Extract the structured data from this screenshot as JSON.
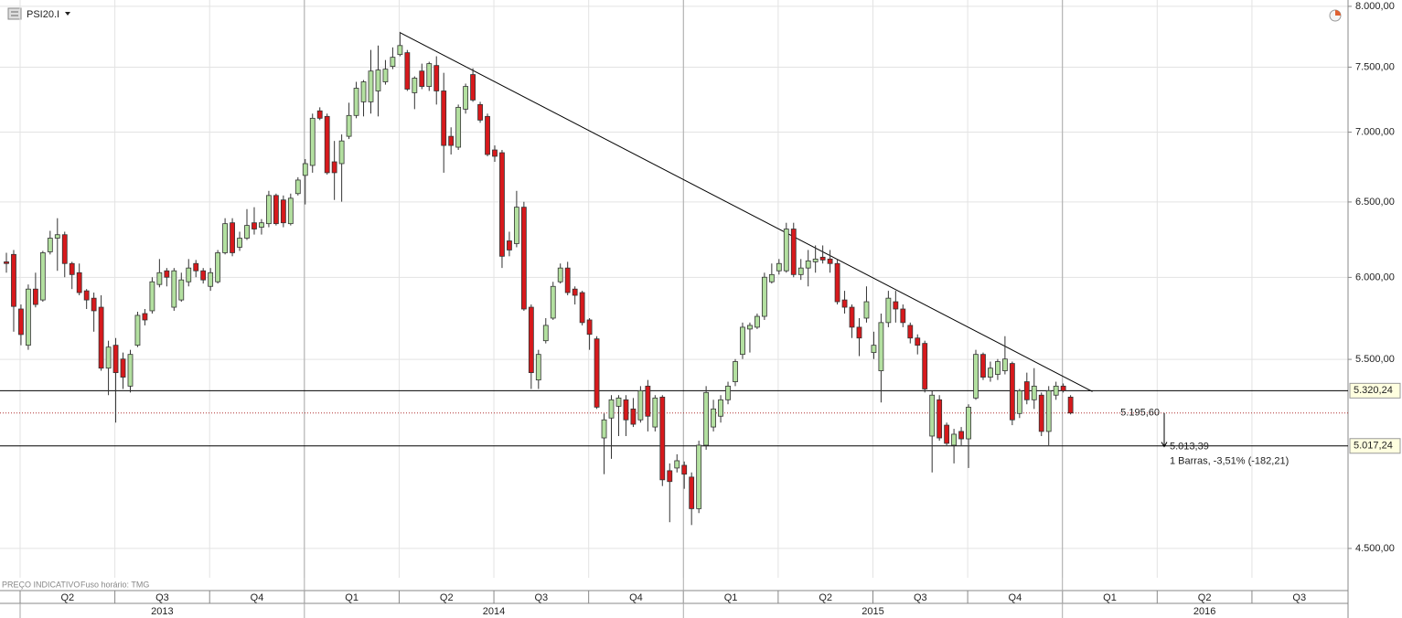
{
  "chart_data": {
    "type": "candlestick",
    "symbol": "PSI20.I",
    "footer_note": "PREÇO INDICATIVO",
    "timezone_note": "Fuso horário: TMG",
    "log_scale": true,
    "grid": true,
    "up_color": "#b3e0a0",
    "down_color": "#d7191c",
    "ylim": [
      4362,
      8054
    ],
    "yticks": [
      {
        "value": 4500,
        "label": "4.500,00"
      },
      {
        "value": 5500,
        "label": "5.500,00"
      },
      {
        "value": 6000,
        "label": "6.000,00"
      },
      {
        "value": 6500,
        "label": "6.500,00"
      },
      {
        "value": 7000,
        "label": "7.000,00"
      },
      {
        "value": 7500,
        "label": "7.500,00"
      },
      {
        "value": 8000,
        "label": "8.000,00"
      }
    ],
    "quarters": [
      "Q2",
      "Q3",
      "Q4",
      "Q1",
      "Q2",
      "Q3",
      "Q4",
      "Q1",
      "Q2",
      "Q3",
      "Q4",
      "Q1",
      "Q2",
      "Q3"
    ],
    "years": [
      "2013",
      "2014",
      "2015",
      "2016"
    ],
    "open": [
      6100,
      6148,
      5802,
      5583,
      5926,
      5858,
      6165,
      6255,
      6278,
      6089,
      6030,
      5915,
      5869,
      5813,
      5449,
      5583,
      5502,
      5346,
      5583,
      5774,
      5791,
      5955,
      6042,
      5813,
      5858,
      5972,
      6089,
      6042,
      5943,
      5972,
      6159,
      6358,
      6195,
      6255,
      6358,
      6328,
      6352,
      6545,
      6514,
      6352,
      6558,
      6686,
      6757,
      7160,
      7118,
      6783,
      6770,
      6969,
      7125,
      7229,
      7229,
      7313,
      7384,
      7506,
      7601,
      7616,
      7299,
      7469,
      7348,
      7513,
      7313,
      6969,
      6889,
      7173,
      7441,
      7208,
      7118,
      6869,
      6849,
      6237,
      6219,
      6464,
      5813,
      5381,
      5610,
      5746,
      5972,
      6060,
      5926,
      5904,
      5735,
      5621,
      5060,
      5168,
      5233,
      5269,
      5218,
      5158,
      5346,
      5119,
      5284,
      4887,
      4901,
      4915,
      4854,
      4694,
      5021,
      5119,
      5178,
      5269,
      5371,
      5529,
      5680,
      5691,
      5757,
      5972,
      6042,
      6042,
      6316,
      6018,
      6060,
      6100,
      6130,
      6118,
      6089,
      5858,
      5813,
      5691,
      5746,
      5540,
      5434,
      5719,
      5847,
      5802,
      5702,
      5626,
      5594,
      5070,
      5269,
      5129,
      5021,
      5095,
      5055,
      5279,
      5529,
      5397,
      5413,
      5434,
      5476,
      5193,
      5371,
      5269,
      5295,
      5095,
      5295,
      5346,
      5284
    ],
    "high": [
      6159,
      6177,
      5830,
      5955,
      6030,
      6171,
      6304,
      6389,
      6298,
      6100,
      6089,
      5926,
      5904,
      5887,
      5610,
      5626,
      5540,
      5556,
      5785,
      5802,
      6001,
      6118,
      6060,
      6060,
      6030,
      6118,
      6112,
      6060,
      6060,
      6177,
      6389,
      6389,
      6298,
      6451,
      6464,
      6383,
      6577,
      6558,
      6545,
      6558,
      6673,
      6803,
      7139,
      7187,
      7139,
      6935,
      6983,
      7222,
      7384,
      7398,
      7638,
      7674,
      7557,
      7659,
      7786,
      7638,
      7427,
      7528,
      7543,
      7587,
      7455,
      7036,
      7208,
      7370,
      7491,
      7229,
      7139,
      6902,
      6869,
      6298,
      6577,
      6501,
      5830,
      5556,
      5746,
      5972,
      6089,
      6100,
      5943,
      5915,
      5746,
      5637,
      5193,
      5295,
      5295,
      5295,
      5279,
      5346,
      5381,
      5295,
      5295,
      4925,
      4973,
      4935,
      4878,
      5045,
      5346,
      5269,
      5295,
      5371,
      5502,
      5719,
      5719,
      5774,
      6030,
      6089,
      6118,
      6358,
      6358,
      6118,
      6177,
      6207,
      6207,
      6177,
      6118,
      5915,
      5830,
      5746,
      5943,
      5664,
      5774,
      5915,
      5915,
      5830,
      5719,
      5648,
      5610,
      5320,
      5295,
      5143,
      5109,
      5119,
      5244,
      5556,
      5540,
      5487,
      5502,
      5637,
      5487,
      5330,
      5423,
      5449,
      5310,
      5346,
      5371,
      5361,
      5295
    ],
    "low": [
      6030,
      5664,
      5583,
      5556,
      5812,
      5847,
      6148,
      6042,
      6001,
      5926,
      5887,
      5802,
      5664,
      5434,
      5295,
      5143,
      5330,
      5310,
      5572,
      5702,
      5774,
      5937,
      5943,
      5791,
      5847,
      5943,
      6001,
      5961,
      5915,
      5961,
      6148,
      6136,
      6171,
      6243,
      6279,
      6279,
      6328,
      6340,
      6328,
      6340,
      6545,
      6483,
      6705,
      7090,
      6692,
      6514,
      6502,
      6949,
      7104,
      7118,
      7139,
      7118,
      7362,
      7484,
      7587,
      7313,
      7173,
      7327,
      7313,
      7208,
      6705,
      6836,
      6869,
      7139,
      7229,
      7070,
      6823,
      6783,
      6060,
      6136,
      6195,
      5791,
      5330,
      5330,
      5594,
      5735,
      5961,
      5887,
      5830,
      5702,
      5556,
      5218,
      4869,
      4949,
      5070,
      5070,
      5119,
      5143,
      5095,
      5095,
      4808,
      4627,
      4878,
      4794,
      4613,
      4672,
      4997,
      5095,
      5143,
      5244,
      5346,
      5502,
      5540,
      5680,
      5735,
      5961,
      6018,
      6030,
      6001,
      5984,
      5943,
      6030,
      6089,
      6030,
      5830,
      5774,
      5626,
      5519,
      5719,
      5502,
      5254,
      5691,
      5719,
      5691,
      5594,
      5529,
      5310,
      4878,
      5045,
      5021,
      4925,
      5021,
      4901,
      5269,
      5381,
      5371,
      5381,
      5413,
      5129,
      5168,
      5244,
      5218,
      5070,
      5021,
      5269,
      5310,
      5188
    ],
    "close": [
      6089,
      5818,
      5647,
      5926,
      5830,
      6159,
      6255,
      6278,
      6089,
      6018,
      5904,
      5858,
      5791,
      5449,
      5572,
      5423,
      5397,
      5529,
      5763,
      5735,
      5972,
      6030,
      6001,
      6042,
      5984,
      6060,
      6042,
      5984,
      6030,
      6159,
      6352,
      6159,
      6255,
      6340,
      6316,
      6358,
      6545,
      6352,
      6358,
      6526,
      6653,
      6770,
      7104,
      7104,
      6705,
      6705,
      6935,
      7125,
      7334,
      7384,
      7469,
      7477,
      7484,
      7579,
      7674,
      7327,
      7413,
      7348,
      7528,
      7313,
      6902,
      6902,
      7187,
      7348,
      7243,
      7090,
      6836,
      6823,
      6136,
      6177,
      6464,
      5802,
      5423,
      5529,
      5702,
      5943,
      6060,
      5904,
      5887,
      5719,
      5648,
      5228,
      5158,
      5269,
      5279,
      5158,
      5134,
      5320,
      5178,
      5279,
      4840,
      4831,
      4939,
      4869,
      4694,
      5021,
      5310,
      5218,
      5269,
      5346,
      5487,
      5691,
      5702,
      5757,
      6001,
      6018,
      6089,
      6316,
      6018,
      6060,
      6106,
      6118,
      6112,
      6089,
      5847,
      5813,
      5691,
      5626,
      5847,
      5583,
      5719,
      5869,
      5802,
      5719,
      5626,
      5583,
      5330,
      5295,
      5060,
      5031,
      5080,
      5055,
      5228,
      5529,
      5397,
      5449,
      5487,
      5502,
      5158,
      5320,
      5269,
      5346,
      5095,
      5320,
      5346,
      5320,
      5195.6
    ],
    "levels": [
      {
        "value": 5320.24,
        "label": "5.320,24"
      },
      {
        "value": 5017.24,
        "label": "5.017,24"
      }
    ],
    "last_price": {
      "value": 5195.6,
      "label": "5.195,60"
    },
    "trendline": {
      "from": [
        54,
        7780
      ],
      "to": [
        149,
        5315
      ]
    },
    "measure": {
      "start": 5195.6,
      "end": 5013.39,
      "end_label": "5.013,39",
      "text": "1 Barras, -3,51% (-182,21)"
    }
  }
}
